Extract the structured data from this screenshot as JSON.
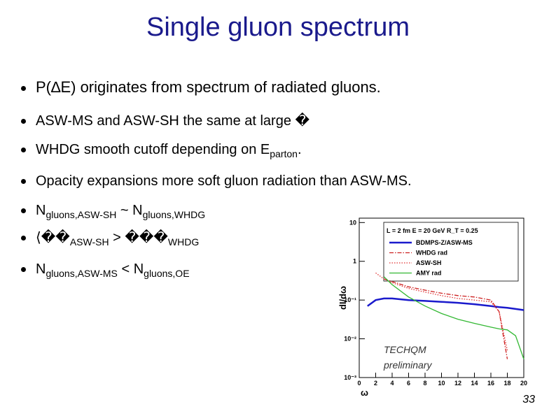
{
  "slide": {
    "title": "Single gluon spectrum",
    "bullets": [
      [
        {
          "text": "P(∆E) originates from spectrum of radiated gluons."
        }
      ],
      [
        {
          "text": "ASW-MS and ASW-SH the same at large �"
        }
      ],
      [
        {
          "text": "WHDG smooth cutoff depending on E"
        },
        {
          "sub": "parton"
        },
        {
          "text": "."
        }
      ],
      [
        {
          "text": "Opacity expansions more soft gluon radiation than ASW-MS."
        }
      ],
      [
        {
          "text": "N"
        },
        {
          "sub": "gluons,ASW-SH"
        },
        {
          "text": " ~ N"
        },
        {
          "sub": "gluons,WHDG"
        }
      ],
      [
        {
          "text": "⟨��"
        },
        {
          "sub": "ASW-SH"
        },
        {
          "text": " > ���"
        },
        {
          "sub": "WHDG"
        }
      ],
      [
        {
          "text": "N"
        },
        {
          "sub": "gluons,ASW-MS"
        },
        {
          "text": " < N"
        },
        {
          "sub": "gluons,OE"
        }
      ]
    ],
    "page_number": "33"
  },
  "chart_data": {
    "type": "line",
    "annotation": "L = 2 fm  E = 20 GeV  R_T = 0.25",
    "watermark": "TECHQM preliminary",
    "xlabel": "ω",
    "ylabel": "dI/dω",
    "ylog": true,
    "xlim": [
      0,
      20
    ],
    "ylim": [
      0.001,
      13
    ],
    "xticks": [
      0,
      2,
      4,
      6,
      8,
      10,
      12,
      14,
      16,
      18,
      20
    ],
    "yticks": [
      {
        "value": 0.001,
        "label": "10⁻³"
      },
      {
        "value": 0.01,
        "label": "10⁻²"
      },
      {
        "value": 0.1,
        "label": "10⁻¹"
      },
      1,
      10
    ],
    "x": [
      1,
      2,
      3,
      4,
      6,
      8,
      10,
      12,
      14,
      16,
      17,
      18,
      19,
      20
    ],
    "series": [
      {
        "name": "BDMPS-Z/ASW-MS",
        "color": "#1a1acc",
        "linestyle": "solid",
        "values": [
          0.07,
          0.1,
          0.11,
          0.11,
          0.1,
          0.095,
          0.09,
          0.085,
          0.078,
          0.07,
          0.066,
          0.063,
          0.059,
          0.055
        ]
      },
      {
        "name": "WHDG rad",
        "color": "#cc2020",
        "linestyle": "dashdot",
        "values": [
          null,
          null,
          0.35,
          0.3,
          0.22,
          0.18,
          0.15,
          0.13,
          0.12,
          0.1,
          0.05,
          0.003,
          null,
          null
        ]
      },
      {
        "name": "ASW-SH",
        "color": "#e03030",
        "linestyle": "dotted",
        "values": [
          null,
          0.5,
          0.35,
          0.28,
          0.2,
          0.16,
          0.13,
          0.11,
          0.1,
          0.09,
          0.05,
          0.005,
          null,
          null
        ]
      },
      {
        "name": "AMY rad",
        "color": "#33b833",
        "linestyle": "solid",
        "values": [
          null,
          null,
          0.4,
          0.25,
          0.12,
          0.07,
          0.045,
          0.032,
          0.025,
          0.02,
          0.018,
          0.017,
          0.012,
          0.003
        ]
      }
    ]
  }
}
